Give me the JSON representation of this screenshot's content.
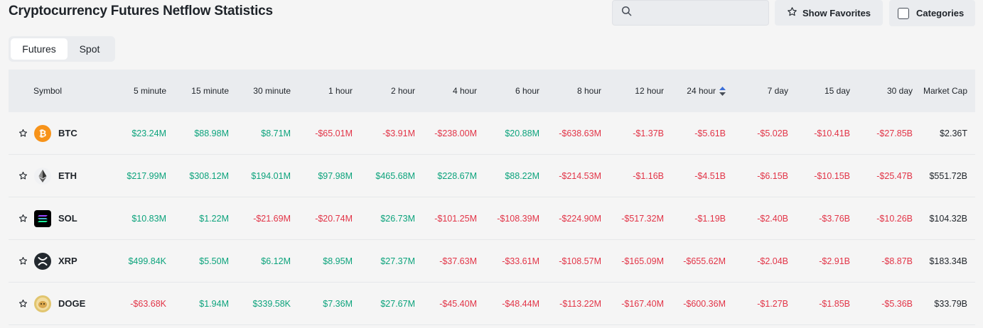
{
  "page": {
    "title": "Cryptocurrency Futures Netflow Statistics"
  },
  "toolbar": {
    "search_placeholder": "",
    "show_favorites": "Show Favorites",
    "categories": "Categories"
  },
  "tabs": [
    {
      "label": "Futures",
      "active": true
    },
    {
      "label": "Spot",
      "active": false
    }
  ],
  "colors": {
    "positive": "#0ca37c",
    "negative": "#e23447",
    "header_bg": "#eaecef",
    "sort_active": "#3b6ed8"
  },
  "table": {
    "headers": [
      "Symbol",
      "5 minute",
      "15 minute",
      "30 minute",
      "1 hour",
      "2 hour",
      "4 hour",
      "6 hour",
      "8 hour",
      "12 hour",
      "24 hour",
      "7 day",
      "15 day",
      "30 day",
      "Market Cap"
    ],
    "sorted_column": "24 hour",
    "rows": [
      {
        "symbol": "BTC",
        "icon": "btc-icon",
        "values": [
          "$23.24M",
          "$88.98M",
          "$8.71M",
          "-$65.01M",
          "-$3.91M",
          "-$238.00M",
          "$20.88M",
          "-$638.63M",
          "-$1.37B",
          "-$5.61B",
          "-$5.02B",
          "-$10.41B",
          "-$27.85B"
        ],
        "market_cap": "$2.36T"
      },
      {
        "symbol": "ETH",
        "icon": "eth-icon",
        "values": [
          "$217.99M",
          "$308.12M",
          "$194.01M",
          "$97.98M",
          "$465.68M",
          "$228.67M",
          "$88.22M",
          "-$214.53M",
          "-$1.16B",
          "-$4.51B",
          "-$6.15B",
          "-$10.15B",
          "-$25.47B"
        ],
        "market_cap": "$551.72B"
      },
      {
        "symbol": "SOL",
        "icon": "sol-icon",
        "values": [
          "$10.83M",
          "$1.22M",
          "-$21.69M",
          "-$20.74M",
          "$26.73M",
          "-$101.25M",
          "-$108.39M",
          "-$224.90M",
          "-$517.32M",
          "-$1.19B",
          "-$2.40B",
          "-$3.76B",
          "-$10.26B"
        ],
        "market_cap": "$104.32B"
      },
      {
        "symbol": "XRP",
        "icon": "xrp-icon",
        "values": [
          "$499.84K",
          "$5.50M",
          "$6.12M",
          "$8.95M",
          "$27.37M",
          "-$37.63M",
          "-$33.61M",
          "-$108.57M",
          "-$165.09M",
          "-$655.62M",
          "-$2.04B",
          "-$2.91B",
          "-$8.87B"
        ],
        "market_cap": "$183.34B"
      },
      {
        "symbol": "DOGE",
        "icon": "doge-icon",
        "values": [
          "-$63.68K",
          "$1.94M",
          "$339.58K",
          "$7.36M",
          "$27.67M",
          "-$45.40M",
          "-$48.44M",
          "-$113.22M",
          "-$167.40M",
          "-$600.36M",
          "-$1.27B",
          "-$1.85B",
          "-$5.36B"
        ],
        "market_cap": "$33.79B"
      }
    ]
  }
}
